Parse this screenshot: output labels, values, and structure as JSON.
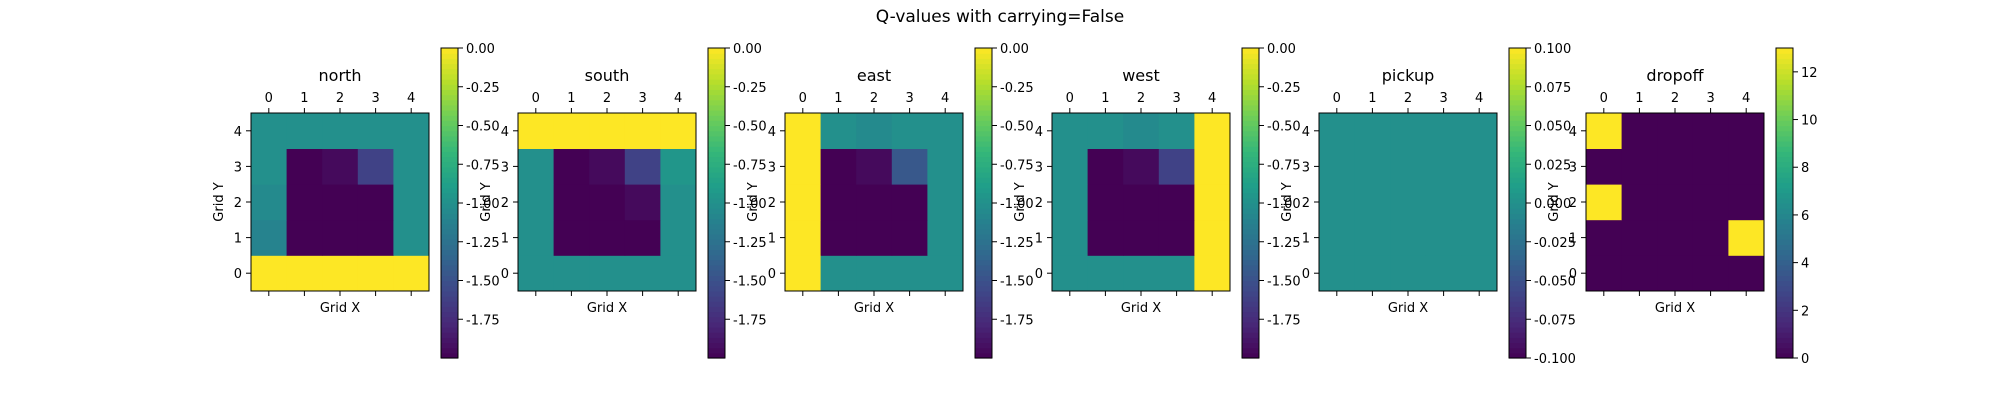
{
  "figure": {
    "title": "Q-values with carrying=False"
  },
  "colormap": {
    "name": "viridis",
    "stops": [
      "#440154",
      "#482878",
      "#3e4989",
      "#31688e",
      "#26828e",
      "#1f9e89",
      "#35b779",
      "#6ece58",
      "#b5de2b",
      "#fde725"
    ]
  },
  "chart_data": [
    {
      "type": "heatmap",
      "title": "north",
      "xlabel": "Grid X",
      "ylabel": "Grid Y",
      "x_ticks": [
        "0",
        "1",
        "2",
        "3",
        "4"
      ],
      "y_ticks": [
        "0",
        "1",
        "2",
        "3",
        "4"
      ],
      "grid": false,
      "colorbar": {
        "min": -2.0,
        "max": 0.0,
        "ticks": [
          "0.00",
          "-0.25",
          "-0.50",
          "-0.75",
          "-1.00",
          "-1.25",
          "-1.50",
          "-1.75"
        ],
        "tick_values": [
          0,
          -0.25,
          -0.5,
          -0.75,
          -1.0,
          -1.25,
          -1.5,
          -1.75
        ]
      },
      "values": [
        [
          0,
          0,
          0,
          0,
          0
        ],
        [
          -1.1,
          -2.0,
          -2.0,
          -2.0,
          -1.0
        ],
        [
          -1.05,
          -2.0,
          -2.0,
          -2.0,
          -1.0
        ],
        [
          -1.0,
          -2.0,
          -1.95,
          -1.6,
          -1.0
        ],
        [
          -1.0,
          -1.0,
          -1.0,
          -1.0,
          -1.0
        ]
      ]
    },
    {
      "type": "heatmap",
      "title": "south",
      "xlabel": "Grid X",
      "ylabel": "Grid Y",
      "x_ticks": [
        "0",
        "1",
        "2",
        "3",
        "4"
      ],
      "y_ticks": [
        "0",
        "1",
        "2",
        "3",
        "4"
      ],
      "grid": false,
      "colorbar": {
        "min": -2.0,
        "max": 0.0,
        "ticks": [
          "0.00",
          "-0.25",
          "-0.50",
          "-0.75",
          "-1.00",
          "-1.25",
          "-1.50",
          "-1.75"
        ],
        "tick_values": [
          0,
          -0.25,
          -0.5,
          -0.75,
          -1.0,
          -1.25,
          -1.5,
          -1.75
        ]
      },
      "values": [
        [
          -1.0,
          -1.0,
          -1.0,
          -1.0,
          -1.0
        ],
        [
          -1.0,
          -2.0,
          -2.0,
          -2.0,
          -1.0
        ],
        [
          -1.0,
          -2.0,
          -2.0,
          -1.95,
          -1.0
        ],
        [
          -1.0,
          -2.0,
          -1.95,
          -1.6,
          -0.95
        ],
        [
          0,
          0,
          0,
          0,
          0
        ]
      ]
    },
    {
      "type": "heatmap",
      "title": "east",
      "xlabel": "Grid X",
      "ylabel": "Grid Y",
      "x_ticks": [
        "0",
        "1",
        "2",
        "3",
        "4"
      ],
      "y_ticks": [
        "0",
        "1",
        "2",
        "3",
        "4"
      ],
      "grid": false,
      "colorbar": {
        "min": -2.0,
        "max": 0.0,
        "ticks": [
          "0.00",
          "-0.25",
          "-0.50",
          "-0.75",
          "-1.00",
          "-1.25",
          "-1.50",
          "-1.75"
        ],
        "tick_values": [
          0,
          -0.25,
          -0.5,
          -0.75,
          -1.0,
          -1.25,
          -1.5,
          -1.75
        ]
      },
      "values": [
        [
          0,
          -1.0,
          -1.0,
          -1.0,
          -1.0
        ],
        [
          0,
          -2.0,
          -2.0,
          -2.0,
          -1.0
        ],
        [
          0,
          -2.0,
          -2.0,
          -2.0,
          -1.0
        ],
        [
          0,
          -2.0,
          -1.95,
          -1.45,
          -1.0
        ],
        [
          0,
          -1.0,
          -1.05,
          -1.0,
          -1.0
        ]
      ]
    },
    {
      "type": "heatmap",
      "title": "west",
      "xlabel": "Grid X",
      "ylabel": "Grid Y",
      "x_ticks": [
        "0",
        "1",
        "2",
        "3",
        "4"
      ],
      "y_ticks": [
        "0",
        "1",
        "2",
        "3",
        "4"
      ],
      "grid": false,
      "colorbar": {
        "min": -2.0,
        "max": 0.0,
        "ticks": [
          "0.00",
          "-0.25",
          "-0.50",
          "-0.75",
          "-1.00",
          "-1.25",
          "-1.50",
          "-1.75"
        ],
        "tick_values": [
          0,
          -0.25,
          -0.5,
          -0.75,
          -1.0,
          -1.25,
          -1.5,
          -1.75
        ]
      },
      "values": [
        [
          -1.0,
          -1.0,
          -1.0,
          -1.0,
          0
        ],
        [
          -1.0,
          -2.0,
          -2.0,
          -2.0,
          0
        ],
        [
          -1.0,
          -2.0,
          -2.0,
          -2.0,
          0
        ],
        [
          -1.0,
          -2.0,
          -1.95,
          -1.6,
          0
        ],
        [
          -1.0,
          -1.0,
          -1.05,
          -1.0,
          0
        ]
      ]
    },
    {
      "type": "heatmap",
      "title": "pickup",
      "xlabel": "Grid X",
      "ylabel": "Grid Y",
      "x_ticks": [
        "0",
        "1",
        "2",
        "3",
        "4"
      ],
      "y_ticks": [
        "0",
        "1",
        "2",
        "3",
        "4"
      ],
      "grid": false,
      "colorbar": {
        "min": -0.1,
        "max": 0.1,
        "ticks": [
          "0.100",
          "0.075",
          "0.050",
          "0.025",
          "0.000",
          "-0.025",
          "-0.050",
          "-0.075",
          "-0.100"
        ],
        "tick_values": [
          0.1,
          0.075,
          0.05,
          0.025,
          0.0,
          -0.025,
          -0.05,
          -0.075,
          -0.1
        ]
      },
      "values": [
        [
          0,
          0,
          0,
          0,
          0
        ],
        [
          0,
          0,
          0,
          0,
          0
        ],
        [
          0,
          0,
          0,
          0,
          0
        ],
        [
          0,
          0,
          0,
          0,
          0
        ],
        [
          0,
          0,
          0,
          0,
          0
        ]
      ]
    },
    {
      "type": "heatmap",
      "title": "dropoff",
      "xlabel": "Grid X",
      "ylabel": "Grid Y",
      "x_ticks": [
        "0",
        "1",
        "2",
        "3",
        "4"
      ],
      "y_ticks": [
        "0",
        "1",
        "2",
        "3",
        "4"
      ],
      "grid": false,
      "colorbar": {
        "min": 0,
        "max": 13,
        "ticks": [
          "12",
          "10",
          "8",
          "6",
          "4",
          "2",
          "0"
        ],
        "tick_values": [
          12,
          10,
          8,
          6,
          4,
          2,
          0
        ]
      },
      "values": [
        [
          0,
          0,
          0,
          0,
          0
        ],
        [
          0,
          0,
          0,
          0,
          13
        ],
        [
          13,
          0,
          0,
          0,
          0
        ],
        [
          0,
          0,
          0,
          0,
          0
        ],
        [
          13,
          0,
          0,
          0,
          0
        ]
      ]
    }
  ]
}
